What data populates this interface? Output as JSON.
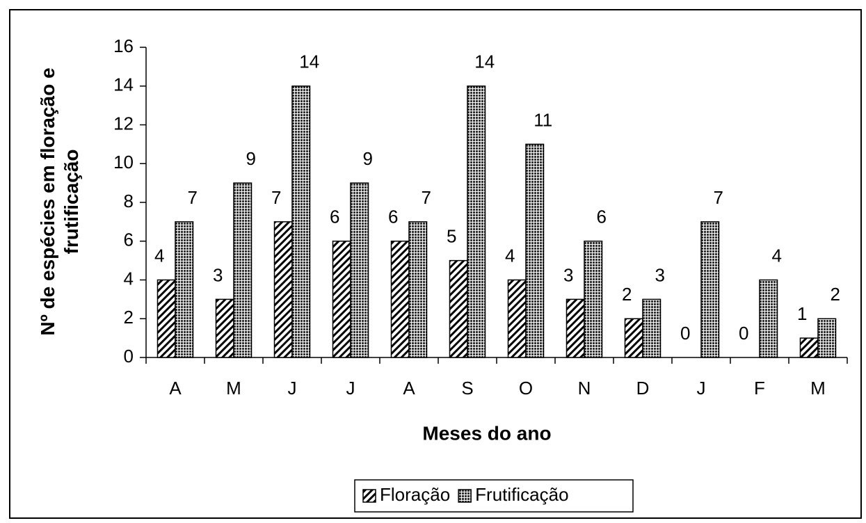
{
  "chart_data": {
    "type": "bar",
    "y_label": "Nº de espécies em floração e frutificação",
    "x_label": "Meses do ano",
    "categories": [
      "A",
      "M",
      "J",
      "J",
      "A",
      "S",
      "O",
      "N",
      "D",
      "J",
      "F",
      "M"
    ],
    "series": [
      {
        "name": "Floração",
        "color": "#000000",
        "values": [
          4,
          3,
          7,
          6,
          6,
          5,
          4,
          3,
          2,
          0,
          0,
          1
        ]
      },
      {
        "name": "Frutificação",
        "color": "#333333",
        "values": [
          7,
          9,
          14,
          9,
          7,
          14,
          11,
          6,
          3,
          7,
          4,
          2
        ]
      }
    ],
    "ylim": [
      0,
      16
    ],
    "yticks": [
      0,
      2,
      4,
      6,
      8,
      10,
      12,
      14,
      16
    ],
    "grid": false,
    "legend": "bottom"
  }
}
